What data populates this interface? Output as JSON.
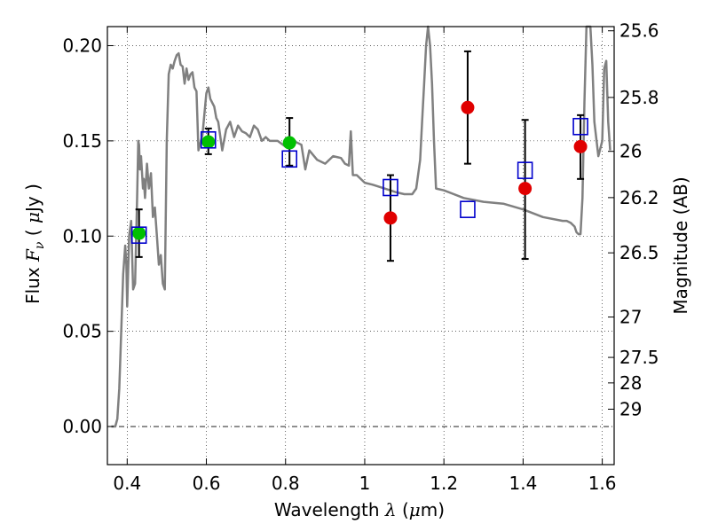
{
  "chart_data": {
    "type": "scatter",
    "xlabel": "Wavelength",
    "xlabel_symbol": "λ",
    "xlabel_unit_open": " (",
    "xlabel_unit_mu": "μ",
    "xlabel_unit_rest": "m)",
    "ylabel": "Flux",
    "ylabel_symbol": "F",
    "ylabel_subscript": "ν",
    "ylabel_unit_open": " ( ",
    "ylabel_unit_mu": "μ",
    "ylabel_unit_rest": "Jy )",
    "y2label": "Magnitude (AB)",
    "xlim": [
      0.35,
      1.63
    ],
    "ylim": [
      -0.02,
      0.21
    ],
    "grid": true,
    "x_ticks": [
      0.4,
      0.6,
      0.8,
      1.0,
      1.2,
      1.4,
      1.6
    ],
    "x_tick_labels": [
      "0.4",
      "0.6",
      "0.8",
      "1",
      "1.2",
      "1.4",
      "1.6"
    ],
    "y_ticks": [
      0.0,
      0.05,
      0.1,
      0.15,
      0.2
    ],
    "y_tick_labels": [
      "0.00",
      "0.05",
      "0.10",
      "0.15",
      "0.20"
    ],
    "y2_ticks": [
      {
        "label": "25.6",
        "flux": 0.2078
      },
      {
        "label": "25.8",
        "flux": 0.1728
      },
      {
        "label": "26",
        "flux": 0.1445
      },
      {
        "label": "26.2",
        "flux": 0.1202
      },
      {
        "label": "26.5",
        "flux": 0.0912
      },
      {
        "label": "27",
        "flux": 0.0575
      },
      {
        "label": "27.5",
        "flux": 0.0363
      },
      {
        "label": "28",
        "flux": 0.0229
      },
      {
        "label": "29",
        "flux": 0.0091
      }
    ],
    "sed_model": {
      "color": "#808080",
      "x": [
        0.36,
        0.37,
        0.375,
        0.38,
        0.385,
        0.39,
        0.395,
        0.398,
        0.4,
        0.405,
        0.41,
        0.415,
        0.42,
        0.425,
        0.428,
        0.43,
        0.432,
        0.435,
        0.44,
        0.442,
        0.445,
        0.45,
        0.455,
        0.46,
        0.465,
        0.47,
        0.475,
        0.48,
        0.485,
        0.49,
        0.495,
        0.5,
        0.505,
        0.51,
        0.515,
        0.52,
        0.525,
        0.53,
        0.535,
        0.54,
        0.545,
        0.55,
        0.555,
        0.56,
        0.565,
        0.57,
        0.575,
        0.58,
        0.59,
        0.6,
        0.605,
        0.61,
        0.615,
        0.62,
        0.625,
        0.63,
        0.64,
        0.65,
        0.66,
        0.67,
        0.68,
        0.69,
        0.7,
        0.71,
        0.72,
        0.73,
        0.74,
        0.75,
        0.76,
        0.78,
        0.8,
        0.82,
        0.84,
        0.85,
        0.86,
        0.88,
        0.9,
        0.92,
        0.94,
        0.95,
        0.96,
        0.965,
        0.97,
        0.98,
        1.0,
        1.02,
        1.05,
        1.08,
        1.1,
        1.12,
        1.13,
        1.14,
        1.145,
        1.15,
        1.155,
        1.16,
        1.165,
        1.17,
        1.175,
        1.18,
        1.2,
        1.25,
        1.3,
        1.35,
        1.4,
        1.45,
        1.5,
        1.51,
        1.52,
        1.53,
        1.535,
        1.54,
        1.545,
        1.55,
        1.555,
        1.56,
        1.565,
        1.57,
        1.575,
        1.58,
        1.59,
        1.6,
        1.605,
        1.61,
        1.615,
        1.62
      ],
      "y": [
        0.0,
        0.0,
        0.004,
        0.02,
        0.05,
        0.08,
        0.095,
        0.085,
        0.063,
        0.1,
        0.108,
        0.072,
        0.075,
        0.12,
        0.15,
        0.148,
        0.135,
        0.142,
        0.125,
        0.13,
        0.12,
        0.138,
        0.125,
        0.133,
        0.11,
        0.115,
        0.1,
        0.085,
        0.09,
        0.075,
        0.072,
        0.15,
        0.185,
        0.19,
        0.188,
        0.192,
        0.195,
        0.196,
        0.19,
        0.189,
        0.18,
        0.188,
        0.182,
        0.185,
        0.186,
        0.178,
        0.176,
        0.145,
        0.153,
        0.175,
        0.178,
        0.172,
        0.17,
        0.168,
        0.162,
        0.16,
        0.145,
        0.156,
        0.16,
        0.152,
        0.158,
        0.155,
        0.154,
        0.152,
        0.158,
        0.156,
        0.15,
        0.152,
        0.15,
        0.15,
        0.147,
        0.15,
        0.148,
        0.135,
        0.145,
        0.14,
        0.138,
        0.142,
        0.141,
        0.138,
        0.137,
        0.155,
        0.132,
        0.132,
        0.128,
        0.127,
        0.125,
        0.123,
        0.122,
        0.122,
        0.125,
        0.14,
        0.16,
        0.18,
        0.2,
        0.21,
        0.2,
        0.18,
        0.15,
        0.125,
        0.124,
        0.12,
        0.118,
        0.117,
        0.114,
        0.11,
        0.108,
        0.108,
        0.107,
        0.105,
        0.102,
        0.101,
        0.101,
        0.12,
        0.17,
        0.21,
        0.21,
        0.21,
        0.19,
        0.16,
        0.142,
        0.15,
        0.188,
        0.192,
        0.16,
        0.145
      ]
    },
    "series": [
      {
        "marker": "circle",
        "color": "#00c000",
        "points": [
          {
            "x": 0.43,
            "y": 0.1015
          },
          {
            "x": 0.605,
            "y": 0.1495
          },
          {
            "x": 0.81,
            "y": 0.149
          }
        ]
      },
      {
        "marker": "circle",
        "color": "#e00000",
        "points": [
          {
            "x": 1.065,
            "y": 0.1095
          },
          {
            "x": 1.26,
            "y": 0.1675
          },
          {
            "x": 1.405,
            "y": 0.125
          },
          {
            "x": 1.545,
            "y": 0.147
          }
        ]
      },
      {
        "marker": "square-open",
        "color": "#0000cc",
        "points": [
          {
            "x": 0.43,
            "y": 0.1005
          },
          {
            "x": 0.605,
            "y": 0.1505
          },
          {
            "x": 0.81,
            "y": 0.1405
          },
          {
            "x": 1.065,
            "y": 0.1255
          },
          {
            "x": 1.26,
            "y": 0.114
          },
          {
            "x": 1.405,
            "y": 0.1345
          },
          {
            "x": 1.545,
            "y": 0.1575
          }
        ]
      }
    ],
    "error_bars": [
      {
        "x": 0.43,
        "y": 0.1015,
        "low": 0.089,
        "high": 0.114
      },
      {
        "x": 0.605,
        "y": 0.1495,
        "low": 0.143,
        "high": 0.1565
      },
      {
        "x": 0.81,
        "y": 0.149,
        "low": 0.137,
        "high": 0.162
      },
      {
        "x": 1.065,
        "y": 0.1095,
        "low": 0.087,
        "high": 0.132
      },
      {
        "x": 1.26,
        "y": 0.1675,
        "low": 0.138,
        "high": 0.197
      },
      {
        "x": 1.405,
        "y": 0.125,
        "low": 0.088,
        "high": 0.161
      },
      {
        "x": 1.545,
        "y": 0.147,
        "low": 0.13,
        "high": 0.1635
      }
    ]
  }
}
